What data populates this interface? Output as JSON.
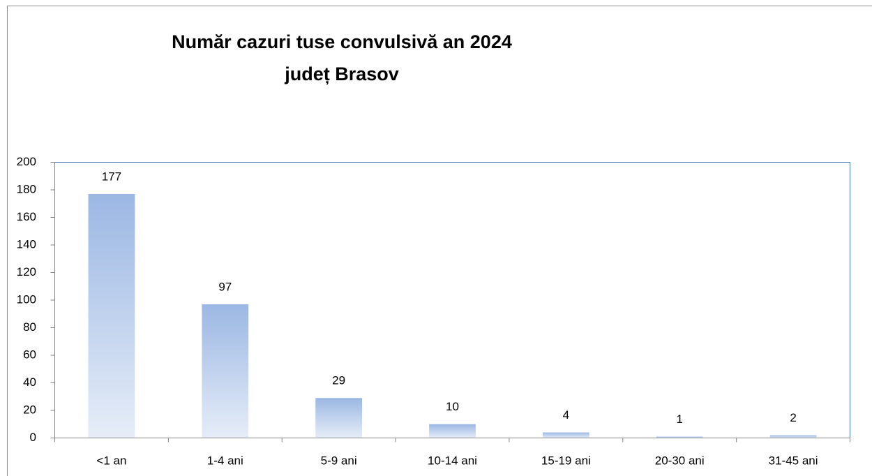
{
  "chart_data": {
    "type": "bar",
    "title": [
      "Număr cazuri tuse convulsivă an 2024",
      "județ Brasov"
    ],
    "categories": [
      "<1 an",
      "1-4 ani",
      "5-9 ani",
      "10-14 ani",
      "15-19 ani",
      "20-30 ani",
      "31-45 ani"
    ],
    "values": [
      177,
      97,
      29,
      10,
      4,
      1,
      2
    ],
    "color": "#9bb7e3",
    "ylim": [
      0,
      200
    ],
    "yticks": [
      0,
      20,
      40,
      60,
      80,
      100,
      120,
      140,
      160,
      180,
      200
    ],
    "grid": false
  }
}
